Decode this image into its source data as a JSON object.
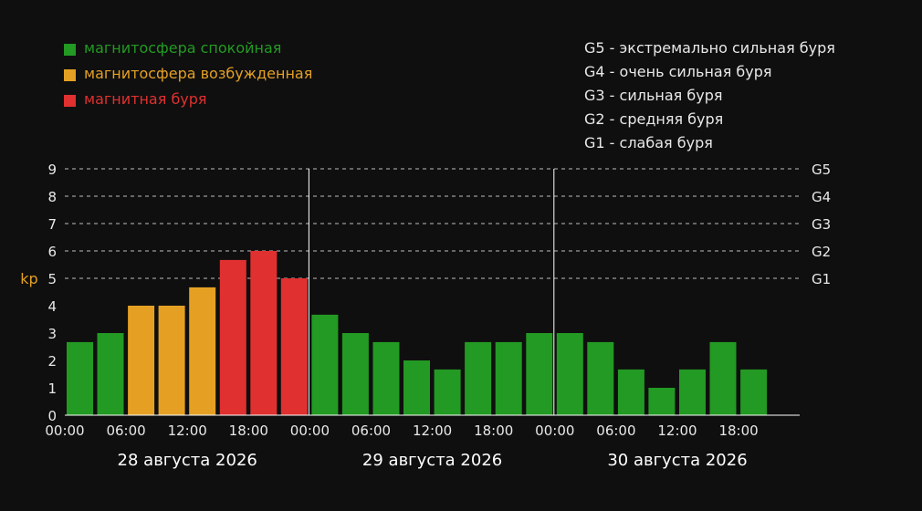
{
  "legend": {
    "items": [
      {
        "label": "магнитосфера спокойная",
        "color": "#239a23"
      },
      {
        "label": "магнитосфера возбужденная",
        "color": "#e5a024"
      },
      {
        "label": "магнитная буря",
        "color": "#e03030"
      }
    ]
  },
  "g_scale": [
    "G5 - экстремально сильная буря",
    "G4 - очень сильная буря",
    "G3 - сильная буря",
    "G2 - средняя буря",
    "G1 - слабая буря"
  ],
  "chart_data": {
    "type": "bar",
    "ylabel": "kp",
    "ylim": [
      0,
      9
    ],
    "y_ticks": [
      0,
      1,
      2,
      3,
      4,
      5,
      6,
      7,
      8,
      9
    ],
    "grid": "dashed horizontal lines at kp 5-9",
    "right_labels": [
      {
        "y": 9,
        "label": "G5"
      },
      {
        "y": 8,
        "label": "G4"
      },
      {
        "y": 7,
        "label": "G3"
      },
      {
        "y": 6,
        "label": "G2"
      },
      {
        "y": 5,
        "label": "G1"
      }
    ],
    "x_tick_labels": [
      "00:00",
      "06:00",
      "12:00",
      "18:00",
      "00:00",
      "06:00",
      "12:00",
      "18:00",
      "00:00",
      "06:00",
      "12:00",
      "18:00"
    ],
    "days": [
      "28 августа 2026",
      "29 августа 2026",
      "30 августа 2026"
    ],
    "colors": {
      "quiet": "#239a23",
      "active": "#e5a024",
      "storm": "#e03030"
    },
    "values": [
      2.67,
      3,
      4,
      4,
      4.67,
      5.67,
      6,
      5,
      3.67,
      3,
      2.67,
      2,
      1.67,
      2.67,
      2.67,
      3,
      3,
      2.67,
      1.67,
      1,
      1.67,
      2.67,
      1.67
    ],
    "categories": [
      "quiet",
      "quiet",
      "active",
      "active",
      "active",
      "storm",
      "storm",
      "storm",
      "quiet",
      "quiet",
      "quiet",
      "quiet",
      "quiet",
      "quiet",
      "quiet",
      "quiet",
      "quiet",
      "quiet",
      "quiet",
      "quiet",
      "quiet",
      "quiet",
      "quiet"
    ]
  }
}
